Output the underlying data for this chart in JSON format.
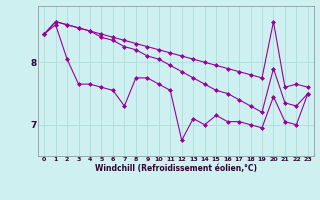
{
  "background_color": "#cff0f0",
  "grid_color": "#b0e0e0",
  "line_color": "#990099",
  "marker_color": "#990099",
  "xlabel": "Windchill (Refroidissement éolien,°C)",
  "xlabel_color": "#330033",
  "yticks": [
    7,
    8
  ],
  "ylim": [
    6.5,
    8.9
  ],
  "xlim": [
    -0.5,
    23.5
  ],
  "xticks": [
    0,
    1,
    2,
    3,
    4,
    5,
    6,
    7,
    8,
    9,
    10,
    11,
    12,
    13,
    14,
    15,
    16,
    17,
    18,
    19,
    20,
    21,
    22,
    23
  ],
  "line1": [
    8.45,
    8.65,
    8.6,
    8.55,
    8.5,
    8.45,
    8.4,
    8.35,
    8.3,
    8.25,
    8.2,
    8.15,
    8.1,
    8.05,
    8.0,
    7.95,
    7.9,
    7.85,
    7.8,
    7.75,
    8.65,
    7.6,
    7.65,
    7.6
  ],
  "line2": [
    8.45,
    8.65,
    8.6,
    8.55,
    8.5,
    8.4,
    8.35,
    8.25,
    8.2,
    8.1,
    8.05,
    7.95,
    7.85,
    7.75,
    7.65,
    7.55,
    7.5,
    7.4,
    7.3,
    7.2,
    7.9,
    7.35,
    7.3,
    7.5
  ],
  "line3": [
    8.45,
    8.6,
    8.05,
    7.65,
    7.65,
    7.6,
    7.55,
    7.3,
    7.75,
    7.75,
    7.65,
    7.55,
    6.75,
    7.1,
    7.0,
    7.15,
    7.05,
    7.05,
    7.0,
    6.95,
    7.45,
    7.05,
    7.0,
    7.5
  ]
}
